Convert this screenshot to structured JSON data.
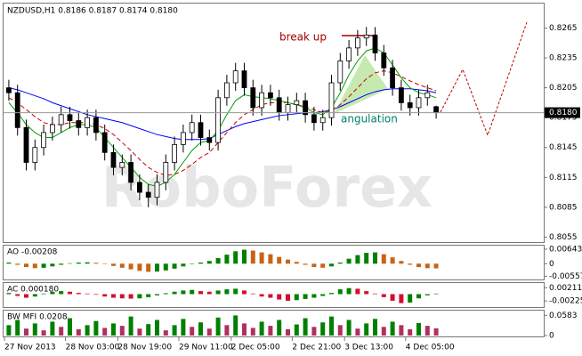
{
  "chart_data": [
    {
      "type": "candlestick",
      "title": "NZDUSD,H1  0.8186 0.8187 0.8174 0.8180",
      "watermark": "RoboForex",
      "annotations": [
        "break up",
        "angulation"
      ],
      "categories": [
        "27 Nov 2013",
        null,
        null,
        null,
        null,
        null,
        null,
        "28 Nov 03:00",
        null,
        null,
        null,
        null,
        null,
        "28 Nov 19:00",
        null,
        null,
        null,
        null,
        null,
        null,
        "29 Nov 11:00",
        null,
        null,
        null,
        null,
        null,
        "2 Dec 05:00",
        null,
        null,
        null,
        null,
        null,
        null,
        "2 Dec 21:00",
        null,
        null,
        null,
        null,
        null,
        "3 Dec 13:00",
        null,
        null,
        null,
        null,
        null,
        null,
        "4 Dec 05:00",
        null,
        null,
        null
      ],
      "open": [
        0.8205,
        0.82,
        0.8165,
        0.813,
        0.8145,
        0.816,
        0.8168,
        0.8178,
        0.8172,
        0.8165,
        0.8175,
        0.816,
        0.814,
        0.8125,
        0.813,
        0.811,
        0.81,
        0.8095,
        0.811,
        0.813,
        0.8148,
        0.816,
        0.817,
        0.8155,
        0.815,
        0.8195,
        0.821,
        0.8222,
        0.8205,
        0.8185,
        0.82,
        0.8195,
        0.818,
        0.8188,
        0.8192,
        0.8178,
        0.817,
        0.8175,
        0.821,
        0.8232,
        0.8245,
        0.8255,
        0.8258,
        0.824,
        0.8225,
        0.8205,
        0.819,
        0.8185,
        0.8195,
        0.8186
      ],
      "high": [
        0.8213,
        0.8208,
        0.8173,
        0.8153,
        0.8168,
        0.8176,
        0.8186,
        0.8186,
        0.818,
        0.8183,
        0.8183,
        0.8168,
        0.8148,
        0.8138,
        0.8138,
        0.8118,
        0.8108,
        0.8118,
        0.8138,
        0.8156,
        0.8168,
        0.8178,
        0.8178,
        0.8163,
        0.8203,
        0.8218,
        0.823,
        0.823,
        0.8213,
        0.8208,
        0.8208,
        0.8203,
        0.8196,
        0.82,
        0.82,
        0.8186,
        0.8183,
        0.8218,
        0.824,
        0.8253,
        0.8263,
        0.8266,
        0.8266,
        0.8248,
        0.8233,
        0.8213,
        0.8198,
        0.8203,
        0.8208,
        0.8187
      ],
      "low": [
        0.8192,
        0.8157,
        0.8122,
        0.8122,
        0.8137,
        0.8152,
        0.816,
        0.8164,
        0.8157,
        0.8157,
        0.8152,
        0.8132,
        0.8117,
        0.8117,
        0.8102,
        0.8092,
        0.8085,
        0.8087,
        0.8102,
        0.8122,
        0.814,
        0.8152,
        0.8147,
        0.8142,
        0.8142,
        0.8187,
        0.8202,
        0.8197,
        0.8177,
        0.8177,
        0.8187,
        0.8172,
        0.8172,
        0.818,
        0.817,
        0.8162,
        0.8162,
        0.8167,
        0.8202,
        0.8224,
        0.8237,
        0.8247,
        0.8232,
        0.8217,
        0.8197,
        0.8182,
        0.8177,
        0.8177,
        0.8187,
        0.8174
      ],
      "close": [
        0.82,
        0.8165,
        0.813,
        0.8145,
        0.816,
        0.8168,
        0.8178,
        0.8172,
        0.8165,
        0.8175,
        0.816,
        0.814,
        0.8125,
        0.813,
        0.811,
        0.81,
        0.8095,
        0.811,
        0.813,
        0.8148,
        0.816,
        0.817,
        0.8155,
        0.815,
        0.8195,
        0.821,
        0.8222,
        0.8205,
        0.8185,
        0.82,
        0.8195,
        0.818,
        0.8188,
        0.8192,
        0.8178,
        0.817,
        0.8175,
        0.821,
        0.8232,
        0.8245,
        0.8255,
        0.8258,
        0.824,
        0.8225,
        0.8205,
        0.819,
        0.8185,
        0.8195,
        0.82,
        0.818
      ],
      "lines": [
        {
          "color": "#0000ff",
          "dashed": false,
          "values": [
            0.8205,
            0.8203,
            0.82,
            0.8197,
            0.8194,
            0.819,
            0.8187,
            0.8184,
            0.8181,
            0.8178,
            0.8176,
            0.8174,
            0.8172,
            0.817,
            0.8167,
            0.8164,
            0.8161,
            0.8158,
            0.8156,
            0.8154,
            0.8153,
            0.8153,
            0.8153,
            0.8154,
            0.8158,
            0.8162,
            0.8166,
            0.8169,
            0.8171,
            0.8173,
            0.8175,
            0.8177,
            0.8178,
            0.8179,
            0.818,
            0.818,
            0.8181,
            0.8183,
            0.8186,
            0.819,
            0.8194,
            0.8198,
            0.8201,
            0.8203,
            0.8204,
            0.8204,
            0.8204,
            0.8203,
            0.8202,
            0.82
          ]
        },
        {
          "color": "#cc0000",
          "dashed": true,
          "values": [
            0.8195,
            0.819,
            0.8183,
            0.8176,
            0.817,
            0.8168,
            0.8168,
            0.817,
            0.817,
            0.817,
            0.8168,
            0.8164,
            0.8158,
            0.815,
            0.8142,
            0.8133,
            0.8125,
            0.812,
            0.8117,
            0.8118,
            0.8122,
            0.8128,
            0.8135,
            0.814,
            0.815,
            0.816,
            0.817,
            0.8178,
            0.8183,
            0.8188,
            0.819,
            0.819,
            0.819,
            0.8188,
            0.8186,
            0.8183,
            0.818,
            0.8182,
            0.8188,
            0.8196,
            0.8205,
            0.8214,
            0.822,
            0.8222,
            0.822,
            0.8216,
            0.8212,
            0.8208,
            0.8205,
            0.8202
          ]
        },
        {
          "color": "#00a000",
          "dashed": false,
          "values": [
            0.819,
            0.818,
            0.8168,
            0.816,
            0.8155,
            0.8155,
            0.816,
            0.8165,
            0.8168,
            0.8168,
            0.8165,
            0.8155,
            0.8145,
            0.8135,
            0.8125,
            0.8115,
            0.8108,
            0.8106,
            0.811,
            0.8118,
            0.813,
            0.8142,
            0.815,
            0.8152,
            0.8162,
            0.8178,
            0.8192,
            0.8198,
            0.8196,
            0.8195,
            0.8194,
            0.8192,
            0.819,
            0.8188,
            0.8185,
            0.818,
            0.8178,
            0.8185,
            0.82,
            0.8218,
            0.8232,
            0.8242,
            0.8245,
            0.824,
            0.8228,
            0.8215,
            0.8205,
            0.82,
            0.8198,
            0.8195
          ]
        }
      ],
      "price_line": {
        "value": 0.818,
        "label": "0.8180"
      },
      "ylim": [
        0.805,
        0.8286
      ],
      "yticks": [
        0.8265,
        0.8235,
        0.8205,
        0.8175,
        0.8145,
        0.8115,
        0.8085,
        0.8055
      ]
    },
    {
      "type": "bar",
      "title": "AO -0.00208",
      "up_color": "#008000",
      "down_color": "#c86414",
      "values": [
        0.0005,
        -0.0005,
        -0.0015,
        -0.002,
        -0.0018,
        -0.0012,
        -0.0005,
        0.0002,
        0.0005,
        0.0006,
        0.0004,
        -0.0002,
        -0.001,
        -0.0018,
        -0.0025,
        -0.0032,
        -0.0036,
        -0.0035,
        -0.003,
        -0.0022,
        -0.0012,
        -0.0002,
        0.0005,
        0.0012,
        0.0025,
        0.004,
        0.0055,
        0.0062,
        0.0058,
        0.005,
        0.0042,
        0.003,
        0.0018,
        0.0008,
        -0.0005,
        -0.0015,
        -0.0018,
        -0.0012,
        0.0005,
        0.0022,
        0.0038,
        0.0048,
        0.005,
        0.0042,
        0.0028,
        0.0012,
        -0.0005,
        -0.0015,
        -0.002,
        -0.00208
      ],
      "ylim": [
        -0.007,
        0.008
      ],
      "yticks": [
        0.00643,
        0,
        -0.00557
      ]
    },
    {
      "type": "bar",
      "title": "AC 0.000180",
      "up_color": "#008000",
      "down_color": "#d01030",
      "values": [
        0.0004,
        -0.0006,
        -0.0012,
        -0.0008,
        0.0002,
        0.0008,
        0.001,
        0.0008,
        0.0004,
        0.0002,
        -0.0002,
        -0.0008,
        -0.0012,
        -0.0014,
        -0.0015,
        -0.0014,
        -0.001,
        -0.0004,
        0.0003,
        0.0008,
        0.0012,
        0.0014,
        0.001,
        0.0008,
        0.0012,
        0.0016,
        0.0018,
        0.0012,
        0.0002,
        -0.0008,
        -0.0012,
        -0.0018,
        -0.0022,
        -0.002,
        -0.0016,
        -0.0012,
        -0.0006,
        0.0004,
        0.0016,
        0.002,
        0.0018,
        0.001,
        0.0002,
        -0.001,
        -0.0022,
        -0.003,
        -0.0028,
        -0.0014,
        -0.0004,
        0.00018
      ],
      "ylim": [
        -0.004,
        0.0034
      ],
      "yticks": [
        0.00211,
        -0.00225
      ]
    },
    {
      "type": "bar",
      "title": "BW MFI 0.0208",
      "up_color": "#008000",
      "down_color": "#b03060",
      "values": [
        0.03,
        0.045,
        0.02,
        0.035,
        0.015,
        0.04,
        0.025,
        0.05,
        0.018,
        0.03,
        0.042,
        0.022,
        0.035,
        0.028,
        0.055,
        0.02,
        0.033,
        0.045,
        0.015,
        0.03,
        0.048,
        0.025,
        0.038,
        0.02,
        0.052,
        0.03,
        0.058,
        0.035,
        0.022,
        0.04,
        0.028,
        0.045,
        0.018,
        0.032,
        0.05,
        0.025,
        0.038,
        0.055,
        0.03,
        0.045,
        0.02,
        0.035,
        0.048,
        0.025,
        0.04,
        0.03,
        0.018,
        0.036,
        0.028,
        0.0208
      ],
      "ylim": [
        0,
        0.072
      ],
      "yticks": [
        0.0583,
        0
      ]
    }
  ]
}
